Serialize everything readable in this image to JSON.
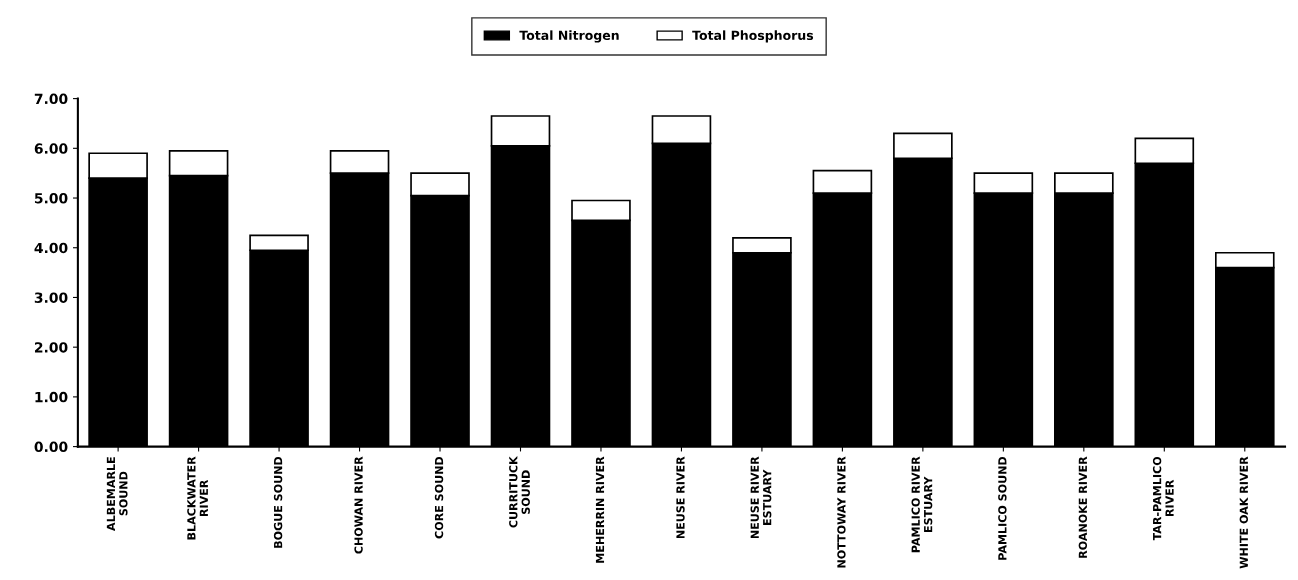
{
  "chart_data": {
    "type": "bar",
    "stacked": true,
    "legend": "top",
    "grid": false,
    "categories": [
      "ALBEMARLE\nSOUND",
      "BLACKWATER\nRIVER",
      "BOGUE SOUND",
      "CHOWAN RIVER",
      "CORE SOUND",
      "CURRITUCK\nSOUND",
      "MEHERRIN RIVER",
      "NEUSE RIVER",
      "NEUSE RIVER\nESTUARY",
      "NOTTOWAY RIVER",
      "PAMLICO RIVER\nESTUARY",
      "PAMLICO SOUND",
      "ROANOKE RIVER",
      "TAR-PAMLICO\nRIVER",
      "WHITE OAK RIVER"
    ],
    "series": [
      {
        "name": "Total Nitrogen",
        "color": "#000000",
        "values": [
          5.4,
          5.45,
          3.95,
          5.5,
          5.05,
          6.05,
          4.55,
          6.1,
          3.9,
          5.1,
          5.8,
          5.1,
          5.1,
          5.7,
          3.6
        ]
      },
      {
        "name": "Total Phosphorus",
        "color": "#ffffff",
        "values": [
          0.5,
          0.5,
          0.3,
          0.45,
          0.45,
          0.6,
          0.4,
          0.55,
          0.3,
          0.45,
          0.5,
          0.4,
          0.4,
          0.5,
          0.3
        ]
      }
    ],
    "ylim": [
      0,
      7
    ],
    "yticks": [
      {
        "value": 0,
        "label": "0.00"
      },
      {
        "value": 1,
        "label": "1.00"
      },
      {
        "value": 2,
        "label": "2.00"
      },
      {
        "value": 3,
        "label": "3.00"
      },
      {
        "value": 4,
        "label": "4.00"
      },
      {
        "value": 5,
        "label": "5.00"
      },
      {
        "value": 6,
        "label": "6.00"
      },
      {
        "value": 7,
        "label": "7.00"
      }
    ]
  }
}
